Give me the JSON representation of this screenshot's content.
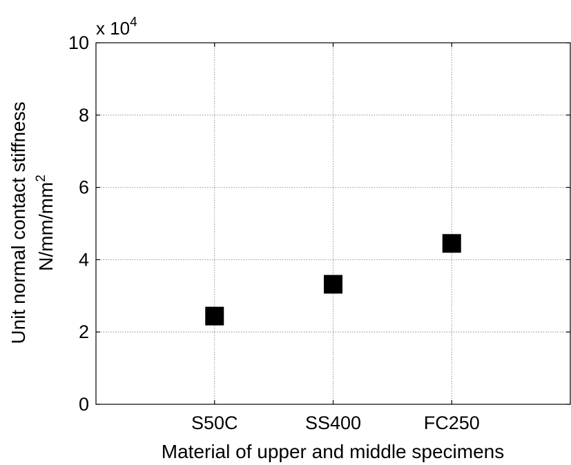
{
  "chart_data": {
    "type": "scatter",
    "title": "",
    "xlabel": "Material of upper and middle specimens",
    "ylabel_line1": "Unit normal contact stiffness",
    "ylabel_line2_base": "N/mm/mm",
    "ylabel_line2_sup": "2",
    "categories": [
      "S50C",
      "SS400",
      "FC250"
    ],
    "values": [
      24400,
      33200,
      44500
    ],
    "ylim": [
      0,
      100000
    ],
    "yticks": [
      0,
      20000,
      40000,
      60000,
      80000,
      100000
    ],
    "ytick_labels": [
      "0",
      "2",
      "4",
      "6",
      "8",
      "10"
    ],
    "y_exponent_prefix": "x 10",
    "y_exponent_power": "4",
    "grid": true,
    "marker": "square",
    "marker_color": "#000000"
  }
}
